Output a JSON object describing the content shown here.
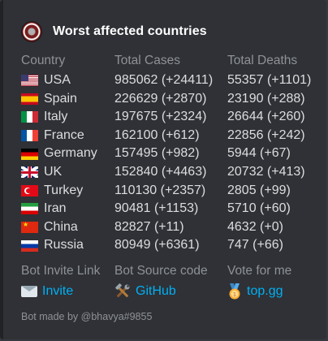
{
  "embed": {
    "title": "Worst affected countries",
    "accent_color": "#202225",
    "headers": {
      "country": "Country",
      "cases": "Total Cases",
      "deaths": "Total Deaths"
    },
    "rows": [
      {
        "flag": "flag-us-icon",
        "country": "USA",
        "cases": "985062 (+24411)",
        "deaths": "55357 (+1101)"
      },
      {
        "flag": "flag-es-icon",
        "country": "Spain",
        "cases": "226629 (+2870)",
        "deaths": "23190 (+288)"
      },
      {
        "flag": "flag-it-icon",
        "country": "Italy",
        "cases": "197675 (+2324)",
        "deaths": "26644 (+260)"
      },
      {
        "flag": "flag-fr-icon",
        "country": "France",
        "cases": "162100 (+612)",
        "deaths": "22856 (+242)"
      },
      {
        "flag": "flag-de-icon",
        "country": "Germany",
        "cases": "157495 (+982)",
        "deaths": "5944 (+67)"
      },
      {
        "flag": "flag-uk-icon",
        "country": "UK",
        "cases": "152840 (+4463)",
        "deaths": "20732 (+413)"
      },
      {
        "flag": "flag-tr-icon",
        "country": "Turkey",
        "cases": "110130 (+2357)",
        "deaths": "2805 (+99)"
      },
      {
        "flag": "flag-ir-icon",
        "country": "Iran",
        "cases": "90481 (+1153)",
        "deaths": "5710 (+60)"
      },
      {
        "flag": "flag-cn-icon",
        "country": "China",
        "cases": "82827 (+11)",
        "deaths": "4632 (+0)"
      },
      {
        "flag": "flag-ru-icon",
        "country": "Russia",
        "cases": "80949 (+6361)",
        "deaths": "747 (+66)"
      }
    ],
    "links": [
      {
        "header": "Bot Invite Link",
        "icon": "envelope-icon",
        "label": "Invite"
      },
      {
        "header": "Bot Source code",
        "icon": "tools-icon",
        "label": "GitHub"
      },
      {
        "header": "Vote for me",
        "icon": "medal-icon",
        "label": "top.gg"
      }
    ],
    "footer": "Bot made by @bhavya#9855",
    "link_color": "#00b0f4"
  }
}
